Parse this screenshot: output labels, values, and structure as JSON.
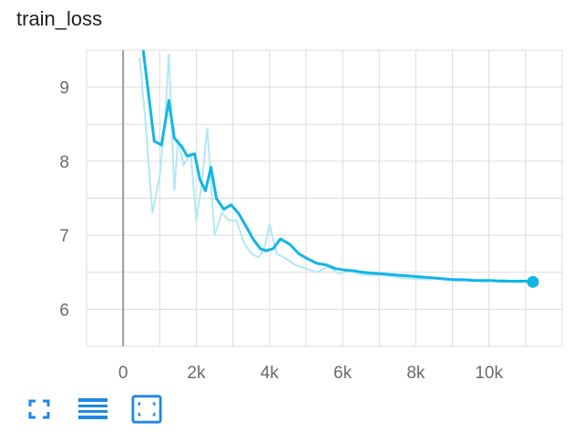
{
  "title": "train_loss",
  "colors": {
    "series": "#12b5e5",
    "series_raw": "#b3e8f5",
    "grid": "#dcdcdc",
    "zero_line": "#9a9a9a",
    "icon": "#1e88e5"
  },
  "toolbar": {
    "buttons": [
      {
        "name": "fullscreen-button",
        "icon": "expand-corners-icon"
      },
      {
        "name": "toggle-log-scale-button",
        "icon": "lines-icon"
      },
      {
        "name": "fit-domain-button",
        "icon": "fit-to-data-icon"
      }
    ]
  },
  "chart_data": {
    "type": "line",
    "title": "train_loss",
    "xlabel": "",
    "ylabel": "",
    "xlim": [
      -1000,
      12000
    ],
    "ylim": [
      5.5,
      9.5
    ],
    "x_ticks": [
      0,
      2000,
      4000,
      6000,
      8000,
      10000
    ],
    "x_tick_labels": [
      "0",
      "2k",
      "4k",
      "6k",
      "8k",
      "10k"
    ],
    "y_ticks": [
      6,
      7,
      8,
      9
    ],
    "y_tick_labels": [
      "6",
      "7",
      "8",
      "9"
    ],
    "grid": true,
    "series": [
      {
        "role": "smoothed",
        "x": [
          550,
          850,
          1050,
          1250,
          1400,
          1600,
          1750,
          1950,
          2100,
          2250,
          2400,
          2550,
          2750,
          2950,
          3150,
          3350,
          3550,
          3750,
          3900,
          4100,
          4300,
          4550,
          4800,
          5050,
          5300,
          5550,
          5800,
          6050,
          6300,
          6550,
          6800,
          7050,
          7300,
          7550,
          7800,
          8050,
          8300,
          8550,
          8800,
          9050,
          9300,
          9550,
          9800,
          10050,
          10300,
          10550,
          10800,
          11000,
          11200
        ],
        "y": [
          9.5,
          8.27,
          8.22,
          8.82,
          8.31,
          8.2,
          8.07,
          8.1,
          7.75,
          7.6,
          7.92,
          7.5,
          7.35,
          7.41,
          7.3,
          7.13,
          6.95,
          6.82,
          6.79,
          6.82,
          6.95,
          6.88,
          6.75,
          6.68,
          6.62,
          6.6,
          6.55,
          6.53,
          6.52,
          6.5,
          6.49,
          6.48,
          6.47,
          6.46,
          6.45,
          6.44,
          6.43,
          6.42,
          6.41,
          6.4,
          6.4,
          6.39,
          6.39,
          6.39,
          6.38,
          6.38,
          6.38,
          6.38,
          6.37
        ]
      },
      {
        "role": "raw",
        "x": [
          450,
          600,
          800,
          1000,
          1150,
          1250,
          1400,
          1500,
          1650,
          1850,
          2000,
          2150,
          2300,
          2500,
          2700,
          2900,
          3100,
          3300,
          3500,
          3700,
          3850,
          4000,
          4200,
          4400,
          4700,
          5000,
          5300,
          5600,
          5900,
          6200,
          6500,
          6800,
          7100,
          7400,
          7700,
          8000,
          8300,
          8600,
          8900,
          9200,
          9500,
          9800,
          10100,
          10400,
          10700,
          11000,
          11200
        ],
        "y": [
          9.4,
          8.6,
          7.3,
          7.8,
          8.6,
          9.45,
          7.6,
          8.3,
          7.95,
          8.1,
          7.2,
          7.7,
          8.45,
          7.0,
          7.3,
          7.2,
          7.2,
          6.9,
          6.75,
          6.7,
          6.8,
          7.15,
          6.75,
          6.7,
          6.6,
          6.55,
          6.5,
          6.58,
          6.48,
          6.52,
          6.47,
          6.46,
          6.46,
          6.44,
          6.42,
          6.41,
          6.4,
          6.43,
          6.4,
          6.38,
          6.41,
          6.37,
          6.38,
          6.4,
          6.36,
          6.37,
          6.37
        ]
      }
    ]
  }
}
